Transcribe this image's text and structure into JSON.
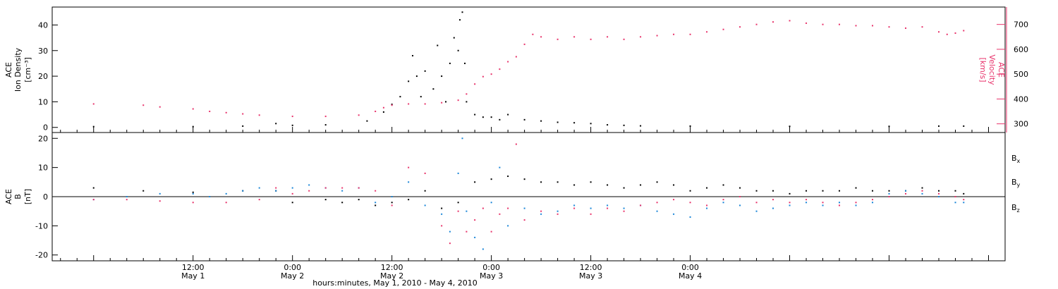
{
  "colors": {
    "black": "#000000",
    "blue": "#1a86d8",
    "pink": "#e8336b"
  },
  "chart_data": [
    {
      "type": "scatter",
      "panel": "top",
      "ylabel_left": [
        "ACE",
        "Ion Density",
        "[cm⁻³]"
      ],
      "ylabel_right": [
        "ACE",
        "Velocity",
        "[km/s]"
      ],
      "ylim_left": [
        -2,
        47
      ],
      "yticks_left": [
        0,
        10,
        20,
        30,
        40
      ],
      "ylim_right": [
        265,
        770
      ],
      "yticks_right": [
        300,
        400,
        500,
        600,
        700
      ],
      "series": [
        {
          "axis": "left",
          "color": "black",
          "points": [
            [
              0,
              0.3
            ],
            [
              12,
              0.3
            ],
            [
              18,
              0.5
            ],
            [
              22,
              1.5
            ],
            [
              24,
              0.8
            ],
            [
              28,
              1.0
            ],
            [
              33,
              2.5
            ],
            [
              35,
              6
            ],
            [
              36,
              9
            ],
            [
              37,
              12
            ],
            [
              38,
              18
            ],
            [
              38.5,
              28
            ],
            [
              39,
              20
            ],
            [
              39.5,
              12
            ],
            [
              40,
              22
            ],
            [
              41,
              15
            ],
            [
              41.5,
              32
            ],
            [
              42,
              20
            ],
            [
              42.5,
              10
            ],
            [
              43,
              25
            ],
            [
              43.5,
              35
            ],
            [
              44,
              30
            ],
            [
              44.2,
              42
            ],
            [
              44.5,
              45
            ],
            [
              44.8,
              25
            ],
            [
              45,
              10
            ],
            [
              46,
              5
            ],
            [
              47,
              4
            ],
            [
              48,
              4
            ],
            [
              49,
              3
            ],
            [
              50,
              5
            ],
            [
              52,
              3
            ],
            [
              54,
              2.5
            ],
            [
              56,
              2
            ],
            [
              58,
              1.8
            ],
            [
              60,
              1.5
            ],
            [
              62,
              1
            ],
            [
              64,
              0.8
            ],
            [
              66,
              0.6
            ],
            [
              72,
              0.5
            ],
            [
              84,
              0.4
            ],
            [
              96,
              0.4
            ],
            [
              102,
              0.5
            ],
            [
              105,
              0.5
            ]
          ]
        },
        {
          "axis": "right",
          "color": "pink",
          "points": [
            [
              0,
              380
            ],
            [
              6,
              375
            ],
            [
              8,
              368
            ],
            [
              12,
              360
            ],
            [
              14,
              350
            ],
            [
              16,
              345
            ],
            [
              18,
              340
            ],
            [
              20,
              335
            ],
            [
              24,
              330
            ],
            [
              28,
              330
            ],
            [
              32,
              335
            ],
            [
              34,
              350
            ],
            [
              35,
              365
            ],
            [
              36,
              375
            ],
            [
              38,
              380
            ],
            [
              40,
              380
            ],
            [
              42,
              385
            ],
            [
              44,
              395
            ],
            [
              45,
              420
            ],
            [
              46,
              460
            ],
            [
              47,
              490
            ],
            [
              48,
              500
            ],
            [
              49,
              520
            ],
            [
              50,
              550
            ],
            [
              51,
              570
            ],
            [
              52,
              620
            ],
            [
              53,
              660
            ],
            [
              54,
              650
            ],
            [
              56,
              640
            ],
            [
              58,
              650
            ],
            [
              60,
              640
            ],
            [
              62,
              650
            ],
            [
              64,
              640
            ],
            [
              66,
              650
            ],
            [
              68,
              655
            ],
            [
              70,
              660
            ],
            [
              72,
              660
            ],
            [
              74,
              670
            ],
            [
              76,
              680
            ],
            [
              78,
              690
            ],
            [
              80,
              700
            ],
            [
              82,
              710
            ],
            [
              84,
              715
            ],
            [
              86,
              705
            ],
            [
              88,
              700
            ],
            [
              90,
              700
            ],
            [
              92,
              695
            ],
            [
              94,
              695
            ],
            [
              96,
              690
            ],
            [
              98,
              685
            ],
            [
              100,
              690
            ],
            [
              102,
              670
            ],
            [
              103,
              660
            ],
            [
              104,
              665
            ],
            [
              105,
              675
            ]
          ]
        }
      ]
    },
    {
      "type": "scatter",
      "panel": "bottom",
      "ylabel_left": [
        "ACE",
        "B",
        "[nT]"
      ],
      "ylim": [
        -22,
        22
      ],
      "yticks": [
        -20,
        -10,
        0,
        10,
        20
      ],
      "legend_position": "right",
      "series": [
        {
          "name": "Bx",
          "color": "black",
          "points": [
            [
              0,
              3
            ],
            [
              6,
              2
            ],
            [
              12,
              1.5
            ],
            [
              18,
              2
            ],
            [
              22,
              2
            ],
            [
              24,
              -2
            ],
            [
              28,
              -1
            ],
            [
              30,
              -2
            ],
            [
              32,
              -1
            ],
            [
              34,
              -3
            ],
            [
              36,
              -2
            ],
            [
              38,
              -1
            ],
            [
              40,
              2
            ],
            [
              42,
              -4
            ],
            [
              44,
              -2
            ],
            [
              46,
              5
            ],
            [
              48,
              6
            ],
            [
              50,
              7
            ],
            [
              52,
              6
            ],
            [
              54,
              5
            ],
            [
              56,
              5
            ],
            [
              58,
              4
            ],
            [
              60,
              5
            ],
            [
              62,
              4
            ],
            [
              64,
              3
            ],
            [
              66,
              4
            ],
            [
              68,
              5
            ],
            [
              70,
              4
            ],
            [
              72,
              2
            ],
            [
              74,
              3
            ],
            [
              76,
              4
            ],
            [
              78,
              3
            ],
            [
              80,
              2
            ],
            [
              82,
              2
            ],
            [
              84,
              1
            ],
            [
              86,
              2
            ],
            [
              88,
              2
            ],
            [
              90,
              2
            ],
            [
              92,
              3
            ],
            [
              94,
              2
            ],
            [
              96,
              2
            ],
            [
              98,
              2
            ],
            [
              100,
              3
            ],
            [
              102,
              2
            ],
            [
              104,
              2
            ],
            [
              105,
              1
            ]
          ]
        },
        {
          "name": "By",
          "color": "blue",
          "points": [
            [
              0,
              -1
            ],
            [
              4,
              0
            ],
            [
              8,
              1
            ],
            [
              12,
              1
            ],
            [
              14,
              0
            ],
            [
              16,
              1
            ],
            [
              18,
              2
            ],
            [
              20,
              3
            ],
            [
              22,
              2
            ],
            [
              24,
              3
            ],
            [
              26,
              4
            ],
            [
              28,
              3
            ],
            [
              30,
              2
            ],
            [
              32,
              3
            ],
            [
              34,
              -2
            ],
            [
              36,
              0
            ],
            [
              38,
              5
            ],
            [
              40,
              -3
            ],
            [
              42,
              -6
            ],
            [
              43,
              -12
            ],
            [
              44,
              8
            ],
            [
              44.5,
              20
            ],
            [
              45,
              -5
            ],
            [
              46,
              -14
            ],
            [
              47,
              -18
            ],
            [
              48,
              -2
            ],
            [
              49,
              10
            ],
            [
              50,
              -10
            ],
            [
              52,
              -4
            ],
            [
              54,
              -6
            ],
            [
              56,
              -5
            ],
            [
              58,
              -3
            ],
            [
              60,
              -4
            ],
            [
              62,
              -3
            ],
            [
              64,
              -4
            ],
            [
              66,
              -3
            ],
            [
              68,
              -5
            ],
            [
              70,
              -6
            ],
            [
              72,
              -7
            ],
            [
              74,
              -4
            ],
            [
              76,
              -2
            ],
            [
              78,
              -3
            ],
            [
              80,
              -5
            ],
            [
              82,
              -4
            ],
            [
              84,
              -3
            ],
            [
              86,
              -2
            ],
            [
              88,
              -3
            ],
            [
              90,
              -2
            ],
            [
              92,
              -3
            ],
            [
              94,
              -2
            ],
            [
              96,
              1
            ],
            [
              98,
              2
            ],
            [
              100,
              1
            ],
            [
              102,
              0
            ],
            [
              104,
              -2
            ],
            [
              105,
              -2
            ]
          ]
        },
        {
          "name": "Bz",
          "color": "pink",
          "points": [
            [
              0,
              -1
            ],
            [
              4,
              -1
            ],
            [
              8,
              -1.5
            ],
            [
              12,
              -2
            ],
            [
              16,
              -2
            ],
            [
              20,
              -1
            ],
            [
              22,
              3
            ],
            [
              24,
              1
            ],
            [
              26,
              2
            ],
            [
              28,
              3
            ],
            [
              30,
              3
            ],
            [
              32,
              3
            ],
            [
              34,
              2
            ],
            [
              36,
              -3
            ],
            [
              38,
              10
            ],
            [
              40,
              8
            ],
            [
              42,
              -10
            ],
            [
              43,
              -16
            ],
            [
              44,
              -5
            ],
            [
              45,
              -12
            ],
            [
              46,
              -8
            ],
            [
              47,
              -4
            ],
            [
              48,
              -12
            ],
            [
              49,
              -6
            ],
            [
              50,
              -4
            ],
            [
              51,
              18
            ],
            [
              52,
              -8
            ],
            [
              54,
              -5
            ],
            [
              56,
              -6
            ],
            [
              58,
              -4
            ],
            [
              60,
              -6
            ],
            [
              62,
              -4
            ],
            [
              64,
              -5
            ],
            [
              66,
              -3
            ],
            [
              68,
              -2
            ],
            [
              70,
              -1
            ],
            [
              72,
              -2
            ],
            [
              74,
              -3
            ],
            [
              76,
              -1
            ],
            [
              78,
              0
            ],
            [
              80,
              -2
            ],
            [
              82,
              -1
            ],
            [
              84,
              -2
            ],
            [
              86,
              -1
            ],
            [
              88,
              -2
            ],
            [
              90,
              -3
            ],
            [
              92,
              -2
            ],
            [
              94,
              -1
            ],
            [
              96,
              0
            ],
            [
              98,
              1
            ],
            [
              100,
              2
            ],
            [
              102,
              1
            ],
            [
              104,
              0
            ],
            [
              105,
              -1
            ]
          ]
        }
      ]
    }
  ],
  "time_axis": {
    "xlim_hours": [
      -5,
      110
    ],
    "ticks": [
      {
        "hour": 12,
        "time": "12:00",
        "date": "May 1"
      },
      {
        "hour": 24,
        "time": "0:00",
        "date": "May 2"
      },
      {
        "hour": 36,
        "time": "12:00",
        "date": "May 2"
      },
      {
        "hour": 48,
        "time": "0:00",
        "date": "May 3"
      },
      {
        "hour": 60,
        "time": "12:00",
        "date": "May 3"
      },
      {
        "hour": 72,
        "time": "0:00",
        "date": "May 4"
      }
    ],
    "xlabel": "hours:minutes, May  1, 2010 - May  4, 2010"
  },
  "legend": [
    {
      "label": "B",
      "sub": "x",
      "color": "black"
    },
    {
      "label": "B",
      "sub": "y",
      "color": "blue"
    },
    {
      "label": "B",
      "sub": "z",
      "color": "pink"
    }
  ]
}
